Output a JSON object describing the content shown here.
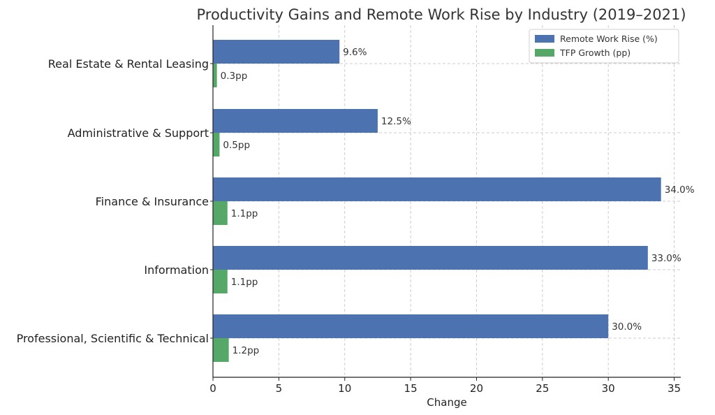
{
  "chart_data": {
    "type": "bar",
    "orientation": "horizontal",
    "title": "Productivity Gains and Remote Work Rise by Industry (2019–2021)",
    "xlabel": "Change",
    "ylabel": "",
    "xlim": [
      0,
      35.5
    ],
    "xticks": [
      0,
      5,
      10,
      15,
      20,
      25,
      30,
      35
    ],
    "grid": true,
    "legend_position": "top-right",
    "categories": [
      "Real Estate & Rental Leasing",
      "Administrative & Support",
      "Finance & Insurance",
      "Information",
      "Professional, Scientific & Technical"
    ],
    "series": [
      {
        "name": "Remote Work Rise (%)",
        "color": "#4c72b0",
        "values": [
          9.6,
          12.5,
          34.0,
          33.0,
          30.0
        ],
        "labels": [
          "9.6%",
          "12.5%",
          "34.0%",
          "33.0%",
          "30.0%"
        ]
      },
      {
        "name": "TFP Growth (pp)",
        "color": "#55a868",
        "values": [
          0.3,
          0.5,
          1.1,
          1.1,
          1.2
        ],
        "labels": [
          "0.3pp",
          "0.5pp",
          "1.1pp",
          "1.1pp",
          "1.2pp"
        ]
      }
    ]
  }
}
